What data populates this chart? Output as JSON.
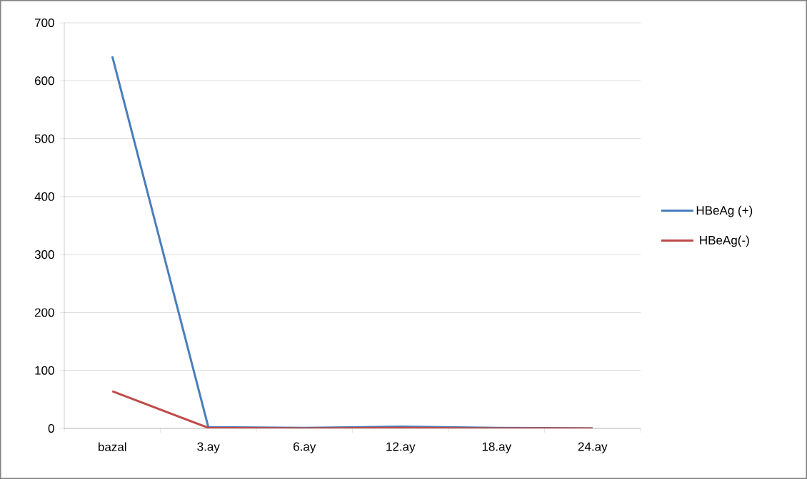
{
  "chart_data": {
    "type": "line",
    "categories": [
      "bazal",
      "3.ay",
      "6.ay",
      "12.ay",
      "18.ay",
      "24.ay"
    ],
    "series": [
      {
        "name": "HBeAg (+)",
        "color": "#4a7ebb",
        "values": [
          642,
          2,
          1,
          3,
          1,
          0
        ]
      },
      {
        "name": "HBeAg(-)",
        "color": "#be4b48",
        "values": [
          64,
          1,
          0,
          1,
          0,
          0
        ]
      }
    ],
    "ylim": [
      0,
      700
    ],
    "yticks": [
      0,
      100,
      200,
      300,
      400,
      500,
      600,
      700
    ],
    "grid": "y",
    "legend": "right",
    "marker": "none",
    "line_style": "solid"
  }
}
